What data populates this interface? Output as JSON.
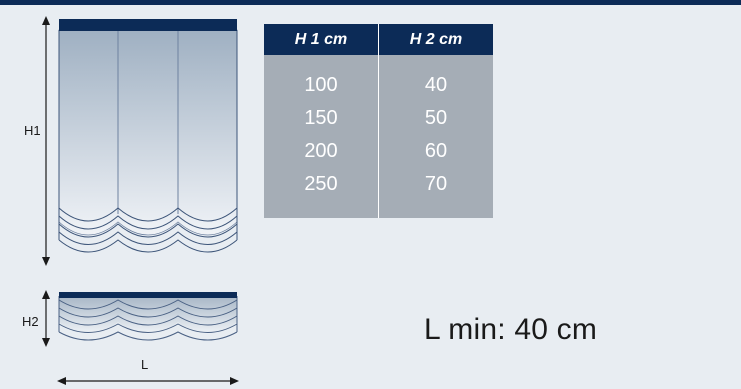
{
  "labels": {
    "h1": "H1",
    "h2": "H2",
    "l": "L",
    "l_min": "L min: 40 cm"
  },
  "table": {
    "headers": [
      "H 1 cm",
      "H 2 cm"
    ],
    "h1_values": [
      "100",
      "150",
      "200",
      "250"
    ],
    "h2_values": [
      "40",
      "50",
      "60",
      "70"
    ]
  },
  "colors": {
    "navy": "#0c2b57",
    "table_body": "#a5adb6",
    "background": "#e8edf2"
  }
}
